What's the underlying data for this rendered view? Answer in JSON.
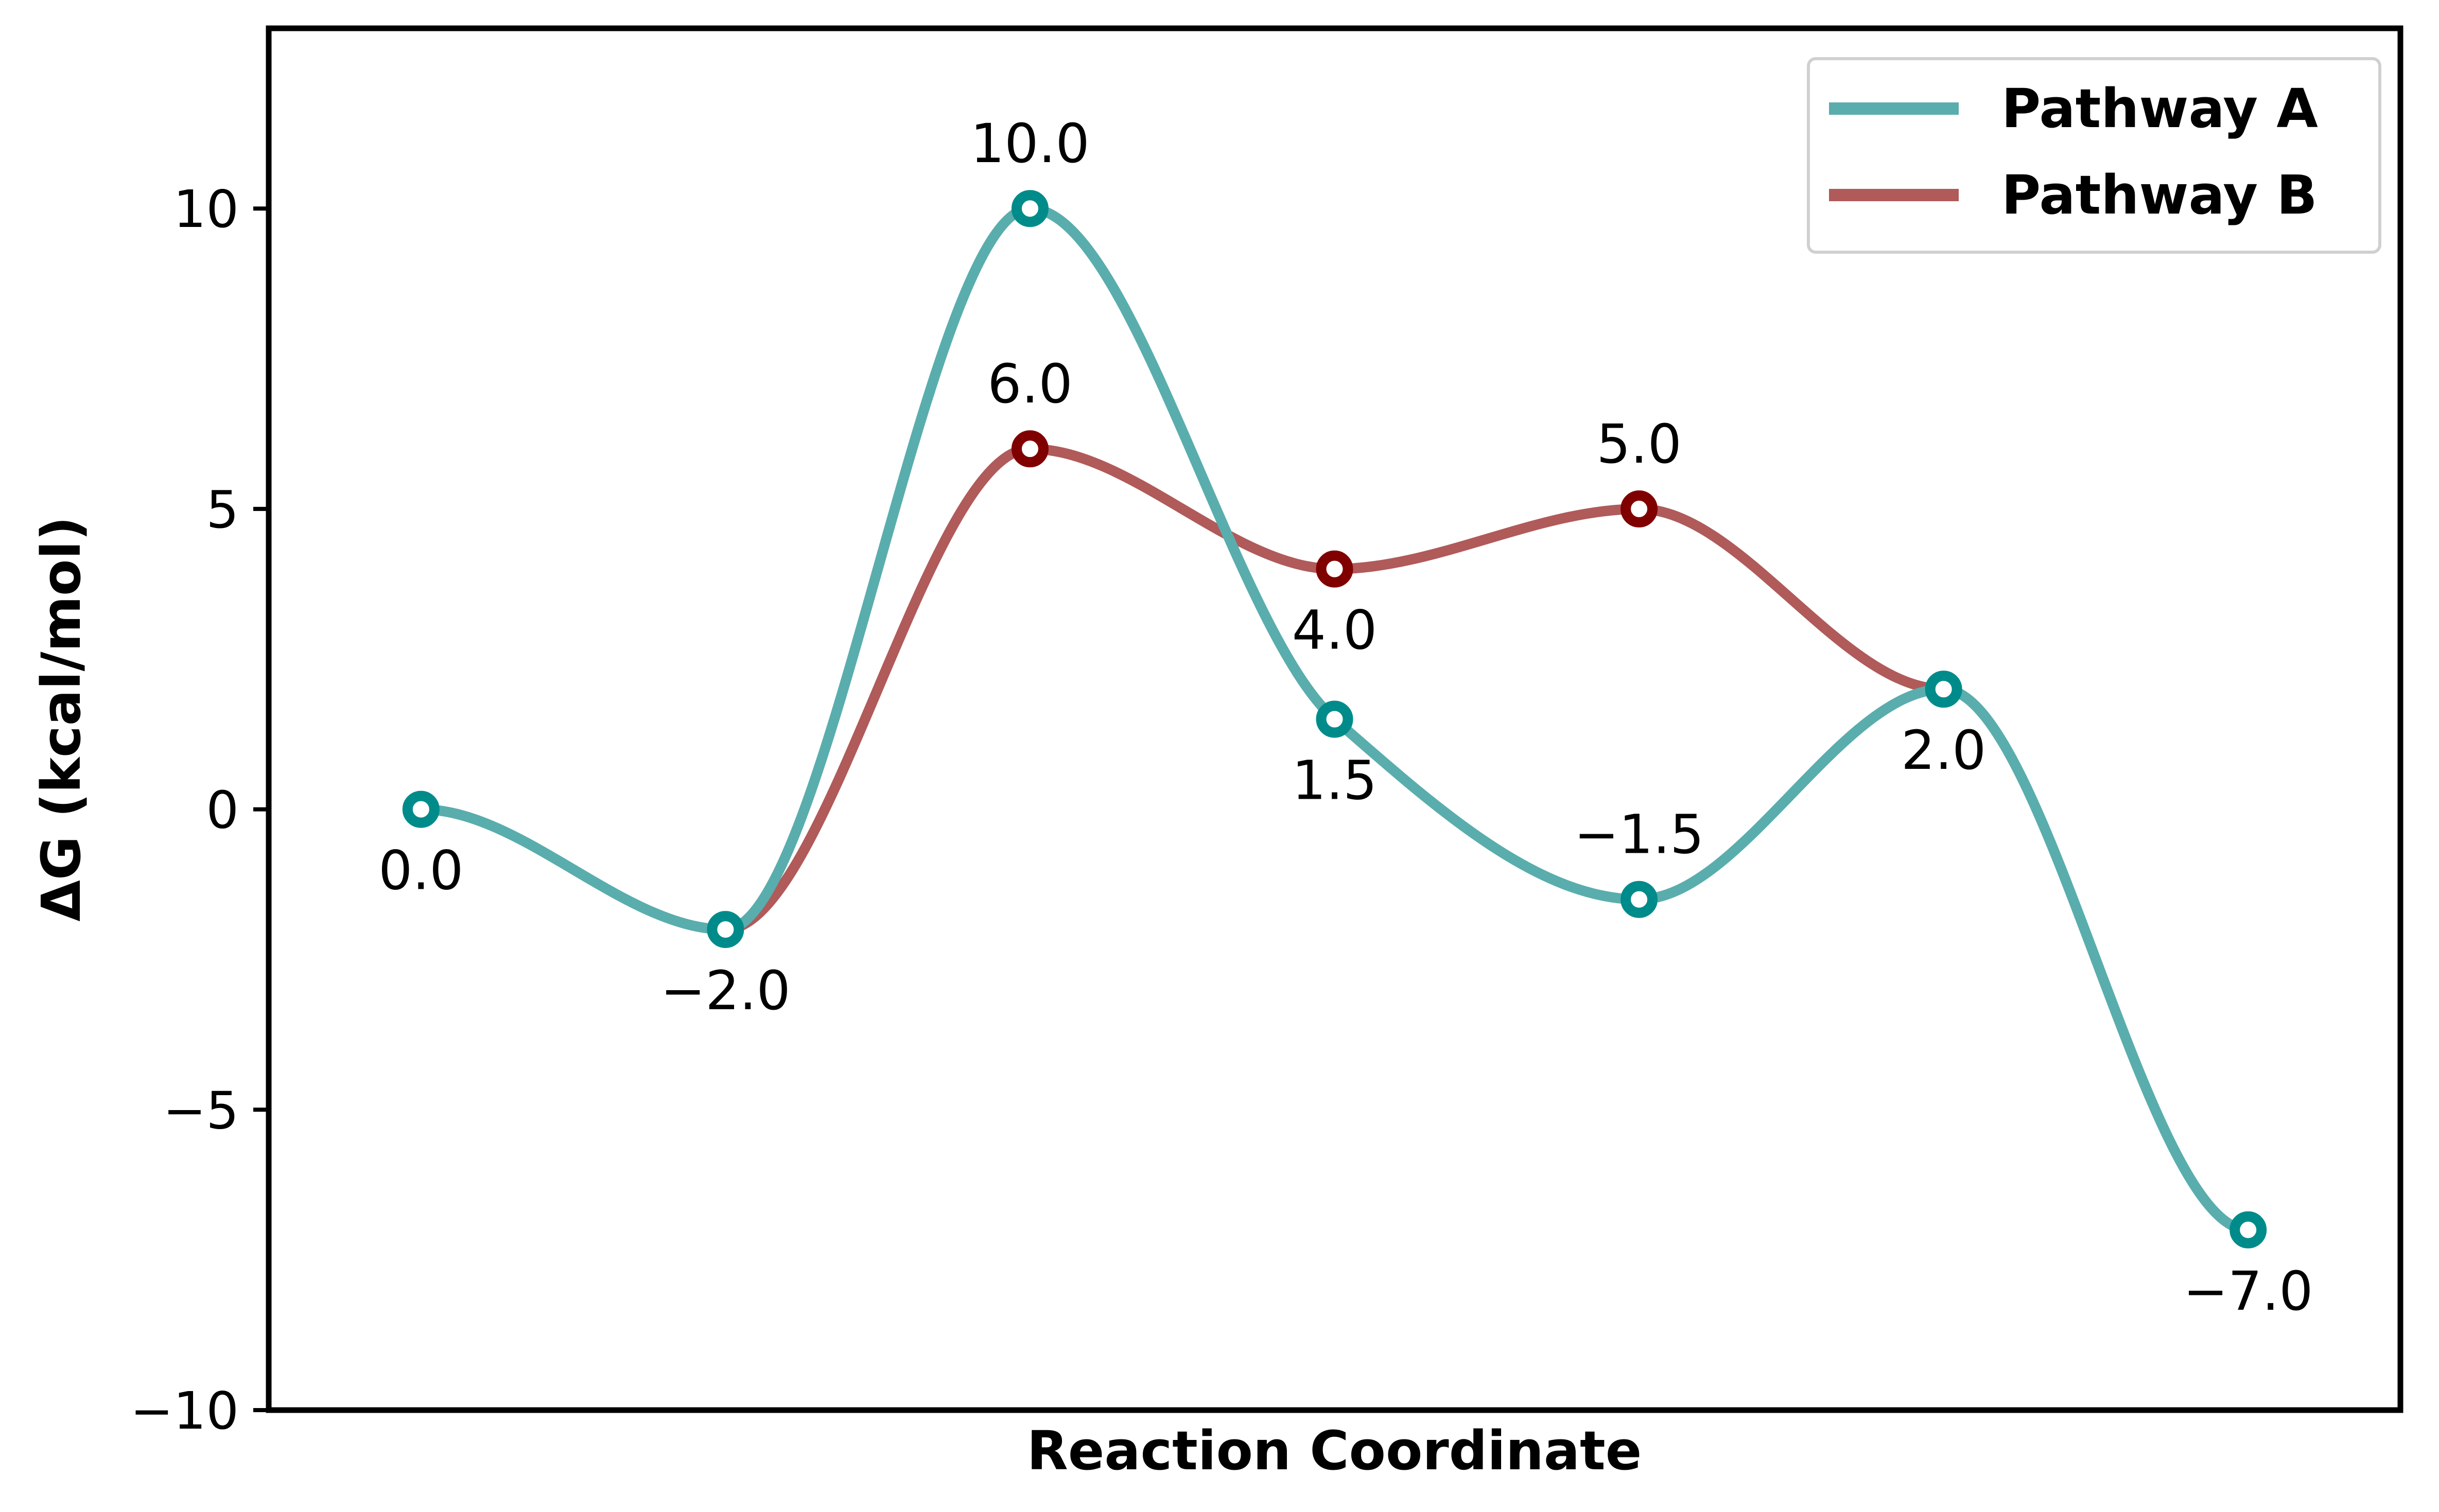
{
  "chart_data": {
    "type": "line",
    "title": "",
    "xlabel": "Reaction Coordinate",
    "ylabel": "ΔG (kcal/mol)",
    "ylim": [
      -10,
      13
    ],
    "xlim": [
      -0.5,
      6.5
    ],
    "y_ticks": [
      {
        "value": -10,
        "label": "−10"
      },
      {
        "value": -5,
        "label": "−5"
      },
      {
        "value": 0,
        "label": "0"
      },
      {
        "value": 5,
        "label": "5"
      },
      {
        "value": 10,
        "label": "10"
      }
    ],
    "x_ticks_visible": false,
    "grid": false,
    "legend": {
      "position": "top-right"
    },
    "series": [
      {
        "name": "Pathway A",
        "color": "#5aadad",
        "marker_color": "#008b8b",
        "x": [
          0,
          1,
          2,
          3,
          4,
          5,
          6
        ],
        "values": [
          0.0,
          -2.0,
          10.0,
          1.5,
          -1.5,
          2.0,
          -7.0
        ],
        "labels": [
          {
            "x": 0,
            "text": "0.0",
            "side": "below"
          },
          {
            "x": 1,
            "text": "−2.0",
            "side": "below"
          },
          {
            "x": 2,
            "text": "10.0",
            "side": "above"
          },
          {
            "x": 3,
            "text": "1.5",
            "side": "below"
          },
          {
            "x": 4,
            "text": "−1.5",
            "side": "above"
          },
          {
            "x": 5,
            "text": "2.0",
            "side": "below"
          },
          {
            "x": 6,
            "text": "−7.0",
            "side": "below"
          }
        ]
      },
      {
        "name": "Pathway B",
        "color": "#b05a5a",
        "marker_color": "#800000",
        "x": [
          1,
          2,
          3,
          4,
          5
        ],
        "values": [
          -2.0,
          6.0,
          4.0,
          5.0,
          2.0
        ],
        "labels": [
          {
            "x": 2,
            "text": "6.0",
            "side": "above"
          },
          {
            "x": 3,
            "text": "4.0",
            "side": "below"
          },
          {
            "x": 4,
            "text": "5.0",
            "side": "above"
          }
        ],
        "hide_markers_at": [
          1,
          5
        ]
      }
    ]
  }
}
